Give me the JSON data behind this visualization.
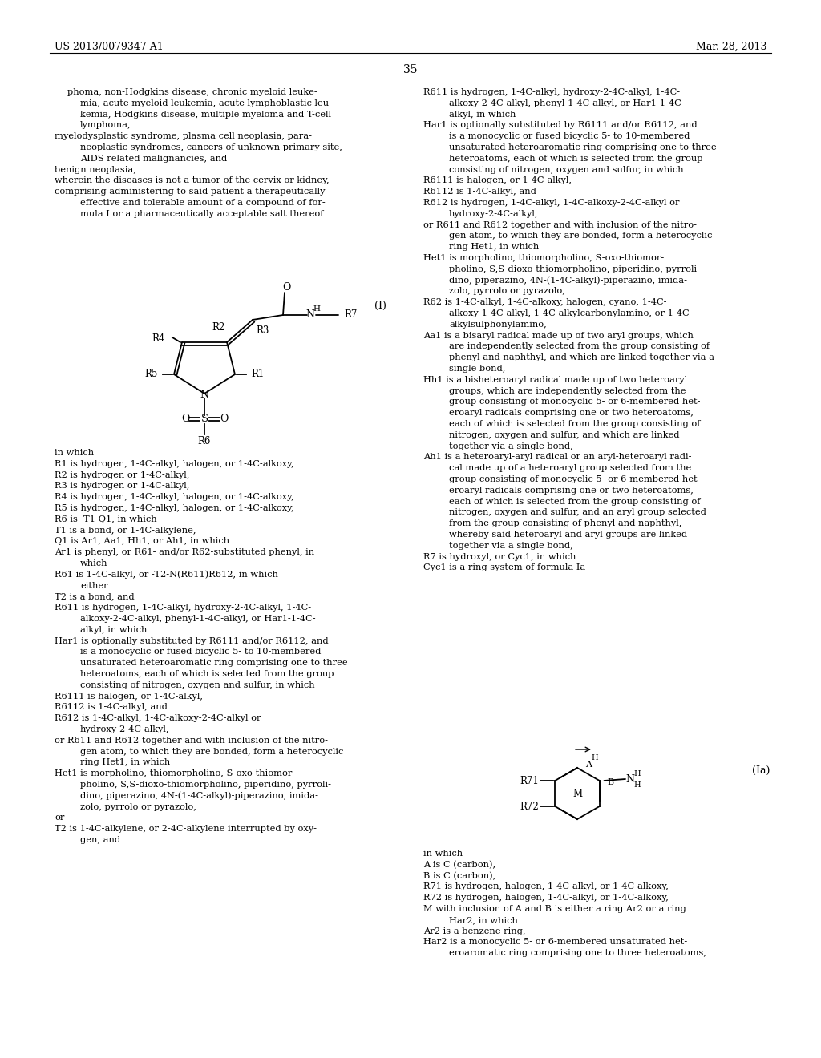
{
  "background_color": "#ffffff",
  "header_left": "US 2013/0079347 A1",
  "header_right": "Mar. 28, 2013",
  "page_number": "35",
  "left_col_text": [
    {
      "indent": 1,
      "text": "phoma, non-Hodgkins disease, chronic myeloid leuke-"
    },
    {
      "indent": 2,
      "text": "mia, acute myeloid leukemia, acute lymphoblastic leu-"
    },
    {
      "indent": 2,
      "text": "kemia, Hodgkins disease, multiple myeloma and T-cell"
    },
    {
      "indent": 2,
      "text": "lymphoma,"
    },
    {
      "indent": 0,
      "text": "myelodysplastic syndrome, plasma cell neoplasia, para-"
    },
    {
      "indent": 2,
      "text": "neoplastic syndromes, cancers of unknown primary site,"
    },
    {
      "indent": 2,
      "text": "AIDS related malignancies, and"
    },
    {
      "indent": 0,
      "text": "benign neoplasia,"
    },
    {
      "indent": 0,
      "text": "wherein the diseases is not a tumor of the cervix or kidney,"
    },
    {
      "indent": 0,
      "text": "comprising administering to said patient a therapeutically"
    },
    {
      "indent": 2,
      "text": "effective and tolerable amount of a compound of for-"
    },
    {
      "indent": 2,
      "text": "mula I or a pharmaceutically acceptable salt thereof"
    }
  ],
  "formula_I_label": "(I)",
  "left_col_text2": [
    {
      "indent": 0,
      "text": "in which"
    },
    {
      "indent": 0,
      "text": "R1 is hydrogen, 1-4C-alkyl, halogen, or 1-4C-alkoxy,"
    },
    {
      "indent": 0,
      "text": "R2 is hydrogen or 1-4C-alkyl,"
    },
    {
      "indent": 0,
      "text": "R3 is hydrogen or 1-4C-alkyl,"
    },
    {
      "indent": 0,
      "text": "R4 is hydrogen, 1-4C-alkyl, halogen, or 1-4C-alkoxy,"
    },
    {
      "indent": 0,
      "text": "R5 is hydrogen, 1-4C-alkyl, halogen, or 1-4C-alkoxy,"
    },
    {
      "indent": 0,
      "text": "R6 is -T1-Q1, in which"
    },
    {
      "indent": 0,
      "text": "T1 is a bond, or 1-4C-alkylene,"
    },
    {
      "indent": 0,
      "text": "Q1 is Ar1, Aa1, Hh1, or Ah1, in which"
    },
    {
      "indent": 0,
      "text": "Ar1 is phenyl, or R61- and/or R62-substituted phenyl, in"
    },
    {
      "indent": 2,
      "text": "which"
    },
    {
      "indent": 0,
      "text": "R61 is 1-4C-alkyl, or -T2-N(R611)R612, in which"
    },
    {
      "indent": 2,
      "text": "either"
    },
    {
      "indent": 0,
      "text": "T2 is a bond, and"
    },
    {
      "indent": 0,
      "text": "R611 is hydrogen, 1-4C-alkyl, hydroxy-2-4C-alkyl, 1-4C-"
    },
    {
      "indent": 2,
      "text": "alkoxy-2-4C-alkyl, phenyl-1-4C-alkyl, or Har1-1-4C-"
    },
    {
      "indent": 2,
      "text": "alkyl, in which"
    },
    {
      "indent": 0,
      "text": "Har1 is optionally substituted by R6111 and/or R6112, and"
    },
    {
      "indent": 2,
      "text": "is a monocyclic or fused bicyclic 5- to 10-membered"
    },
    {
      "indent": 2,
      "text": "unsaturated heteroaromatic ring comprising one to three"
    },
    {
      "indent": 2,
      "text": "heteroatoms, each of which is selected from the group"
    },
    {
      "indent": 2,
      "text": "consisting of nitrogen, oxygen and sulfur, in which"
    },
    {
      "indent": 0,
      "text": "R6111 is halogen, or 1-4C-alkyl,"
    },
    {
      "indent": 0,
      "text": "R6112 is 1-4C-alkyl, and"
    },
    {
      "indent": 0,
      "text": "R612 is 1-4C-alkyl, 1-4C-alkoxy-2-4C-alkyl or"
    },
    {
      "indent": 2,
      "text": "hydroxy-2-4C-alkyl,"
    },
    {
      "indent": 0,
      "text": "or R611 and R612 together and with inclusion of the nitro-"
    },
    {
      "indent": 2,
      "text": "gen atom, to which they are bonded, form a heterocyclic"
    },
    {
      "indent": 2,
      "text": "ring Het1, in which"
    },
    {
      "indent": 0,
      "text": "Het1 is morpholino, thiomorpholino, S-oxo-thiomor-"
    },
    {
      "indent": 2,
      "text": "pholino, S,S-dioxo-thiomorpholino, piperidino, pyrroli-"
    },
    {
      "indent": 2,
      "text": "dino, piperazino, 4N-(1-4C-alkyl)-piperazino, imida-"
    },
    {
      "indent": 2,
      "text": "zolo, pyrrolo or pyrazolo,"
    },
    {
      "indent": 0,
      "text": "or"
    },
    {
      "indent": 0,
      "text": "T2 is 1-4C-alkylene, or 2-4C-alkylene interrupted by oxy-"
    },
    {
      "indent": 2,
      "text": "gen, and"
    }
  ],
  "right_col_text": [
    {
      "indent": 0,
      "text": "R611 is hydrogen, 1-4C-alkyl, hydroxy-2-4C-alkyl, 1-4C-"
    },
    {
      "indent": 2,
      "text": "alkoxy-2-4C-alkyl, phenyl-1-4C-alkyl, or Har1-1-4C-"
    },
    {
      "indent": 2,
      "text": "alkyl, in which"
    },
    {
      "indent": 0,
      "text": "Har1 is optionally substituted by R6111 and/or R6112, and"
    },
    {
      "indent": 2,
      "text": "is a monocyclic or fused bicyclic 5- to 10-membered"
    },
    {
      "indent": 2,
      "text": "unsaturated heteroaromatic ring comprising one to three"
    },
    {
      "indent": 2,
      "text": "heteroatoms, each of which is selected from the group"
    },
    {
      "indent": 2,
      "text": "consisting of nitrogen, oxygen and sulfur, in which"
    },
    {
      "indent": 0,
      "text": "R6111 is halogen, or 1-4C-alkyl,"
    },
    {
      "indent": 0,
      "text": "R6112 is 1-4C-alkyl, and"
    },
    {
      "indent": 0,
      "text": "R612 is hydrogen, 1-4C-alkyl, 1-4C-alkoxy-2-4C-alkyl or"
    },
    {
      "indent": 2,
      "text": "hydroxy-2-4C-alkyl,"
    },
    {
      "indent": 0,
      "text": "or R611 and R612 together and with inclusion of the nitro-"
    },
    {
      "indent": 2,
      "text": "gen atom, to which they are bonded, form a heterocyclic"
    },
    {
      "indent": 2,
      "text": "ring Het1, in which"
    },
    {
      "indent": 0,
      "text": "Het1 is morpholino, thiomorpholino, S-oxo-thiomor-"
    },
    {
      "indent": 2,
      "text": "pholino, S,S-dioxo-thiomorpholino, piperidino, pyrroli-"
    },
    {
      "indent": 2,
      "text": "dino, piperazino, 4N-(1-4C-alkyl)-piperazino, imida-"
    },
    {
      "indent": 2,
      "text": "zolo, pyrrolo or pyrazolo,"
    },
    {
      "indent": 0,
      "text": "R62 is 1-4C-alkyl, 1-4C-alkoxy, halogen, cyano, 1-4C-"
    },
    {
      "indent": 2,
      "text": "alkoxy-1-4C-alkyl, 1-4C-alkylcarbonylamino, or 1-4C-"
    },
    {
      "indent": 2,
      "text": "alkylsulphonylamino,"
    },
    {
      "indent": 0,
      "text": "Aa1 is a bisaryl radical made up of two aryl groups, which"
    },
    {
      "indent": 2,
      "text": "are independently selected from the group consisting of"
    },
    {
      "indent": 2,
      "text": "phenyl and naphthyl, and which are linked together via a"
    },
    {
      "indent": 2,
      "text": "single bond,"
    },
    {
      "indent": 0,
      "text": "Hh1 is a bisheteroaryl radical made up of two heteroaryl"
    },
    {
      "indent": 2,
      "text": "groups, which are independently selected from the"
    },
    {
      "indent": 2,
      "text": "group consisting of monocyclic 5- or 6-membered het-"
    },
    {
      "indent": 2,
      "text": "eroaryl radicals comprising one or two heteroatoms,"
    },
    {
      "indent": 2,
      "text": "each of which is selected from the group consisting of"
    },
    {
      "indent": 2,
      "text": "nitrogen, oxygen and sulfur, and which are linked"
    },
    {
      "indent": 2,
      "text": "together via a single bond,"
    },
    {
      "indent": 0,
      "text": "Ah1 is a heteroaryl-aryl radical or an aryl-heteroaryl radi-"
    },
    {
      "indent": 2,
      "text": "cal made up of a heteroaryl group selected from the"
    },
    {
      "indent": 2,
      "text": "group consisting of monocyclic 5- or 6-membered het-"
    },
    {
      "indent": 2,
      "text": "eroaryl radicals comprising one or two heteroatoms,"
    },
    {
      "indent": 2,
      "text": "each of which is selected from the group consisting of"
    },
    {
      "indent": 2,
      "text": "nitrogen, oxygen and sulfur, and an aryl group selected"
    },
    {
      "indent": 2,
      "text": "from the group consisting of phenyl and naphthyl,"
    },
    {
      "indent": 2,
      "text": "whereby said heteroaryl and aryl groups are linked"
    },
    {
      "indent": 2,
      "text": "together via a single bond,"
    },
    {
      "indent": 0,
      "text": "R7 is hydroxyl, or Cyc1, in which"
    },
    {
      "indent": 0,
      "text": "Cyc1 is a ring system of formula Ia"
    }
  ],
  "formula_Ia_label": "(Ia)",
  "right_col_text2": [
    {
      "indent": 0,
      "text": "in which"
    },
    {
      "indent": 0,
      "text": "A is C (carbon),"
    },
    {
      "indent": 0,
      "text": "B is C (carbon),"
    },
    {
      "indent": 0,
      "text": "R71 is hydrogen, halogen, 1-4C-alkyl, or 1-4C-alkoxy,"
    },
    {
      "indent": 0,
      "text": "R72 is hydrogen, halogen, 1-4C-alkyl, or 1-4C-alkoxy,"
    },
    {
      "indent": 0,
      "text": "M with inclusion of A and B is either a ring Ar2 or a ring"
    },
    {
      "indent": 2,
      "text": "Har2, in which"
    },
    {
      "indent": 0,
      "text": "Ar2 is a benzene ring,"
    },
    {
      "indent": 0,
      "text": "Har2 is a monocyclic 5- or 6-membered unsaturated het-"
    },
    {
      "indent": 2,
      "text": "eroaromatic ring comprising one to three heteroatoms,"
    }
  ]
}
